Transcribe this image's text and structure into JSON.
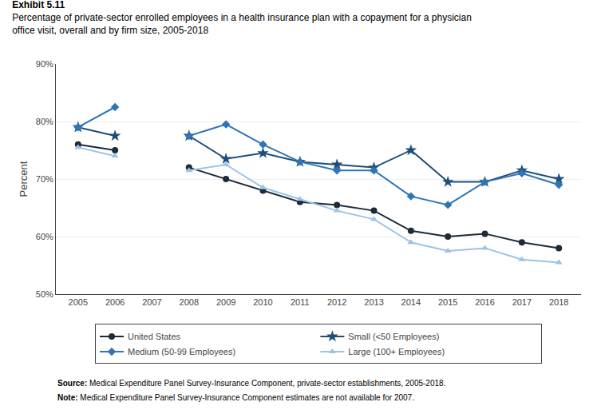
{
  "chart_data": {
    "type": "line",
    "title": "Exhibit 5.11",
    "subtitle": "Percentage of private-sector enrolled employees in a health insurance plan with a copayment for a physician\noffice visit, overall and by firm size, 2005-2018",
    "y_label": "Percent",
    "x": [
      2005,
      2006,
      2007,
      2008,
      2009,
      2010,
      2011,
      2012,
      2013,
      2014,
      2015,
      2016,
      2017,
      2018
    ],
    "series": [
      {
        "name": "United States",
        "color": "#1c2b3a",
        "marker": "circle",
        "values": [
          76.0,
          75.0,
          null,
          72.0,
          70.0,
          68.0,
          66.0,
          65.5,
          64.5,
          61.0,
          60.0,
          60.5,
          59.0,
          58.0
        ]
      },
      {
        "name": "Small (<50 Employees)",
        "color": "#1f4e79",
        "marker": "star",
        "values": [
          79.0,
          77.5,
          null,
          77.5,
          73.5,
          74.5,
          73.0,
          72.5,
          72.0,
          75.0,
          69.5,
          69.5,
          71.5,
          70.0
        ]
      },
      {
        "name": "Medium (50-99 Employees)",
        "color": "#2e75b6",
        "marker": "diamond",
        "values": [
          79.0,
          82.5,
          null,
          77.5,
          79.5,
          76.0,
          73.0,
          71.5,
          71.5,
          67.0,
          65.5,
          69.5,
          71.0,
          69.0
        ]
      },
      {
        "name": "Large (100+ Employees)",
        "color": "#9dc3e6",
        "marker": "triangle-up",
        "values": [
          75.5,
          74.0,
          null,
          71.5,
          72.5,
          68.5,
          66.5,
          64.5,
          63.0,
          59.0,
          57.5,
          58.0,
          56.0,
          55.5
        ]
      }
    ],
    "xlim": [
      2004.4,
      2018.6
    ],
    "xticks": [
      2005,
      2006,
      2007,
      2008,
      2009,
      2010,
      2011,
      2012,
      2013,
      2014,
      2015,
      2016,
      2017,
      2018
    ],
    "ylim": [
      50,
      90
    ],
    "yticks": [
      {
        "value": 50,
        "label": "50%"
      },
      {
        "value": 60,
        "label": "60%"
      },
      {
        "value": 70,
        "label": "70%"
      },
      {
        "value": 80,
        "label": "80%"
      },
      {
        "value": 90,
        "label": "90%"
      }
    ],
    "grid": true,
    "legend": "bottom",
    "annotations": [
      "Source: Medical Expenditure Panel Survey-Insurance Component, private-sector establishments, 2005-2018.",
      "Note: Medical Expenditure Panel Survey-Insurance Component estimates are not available for 2007."
    ]
  }
}
